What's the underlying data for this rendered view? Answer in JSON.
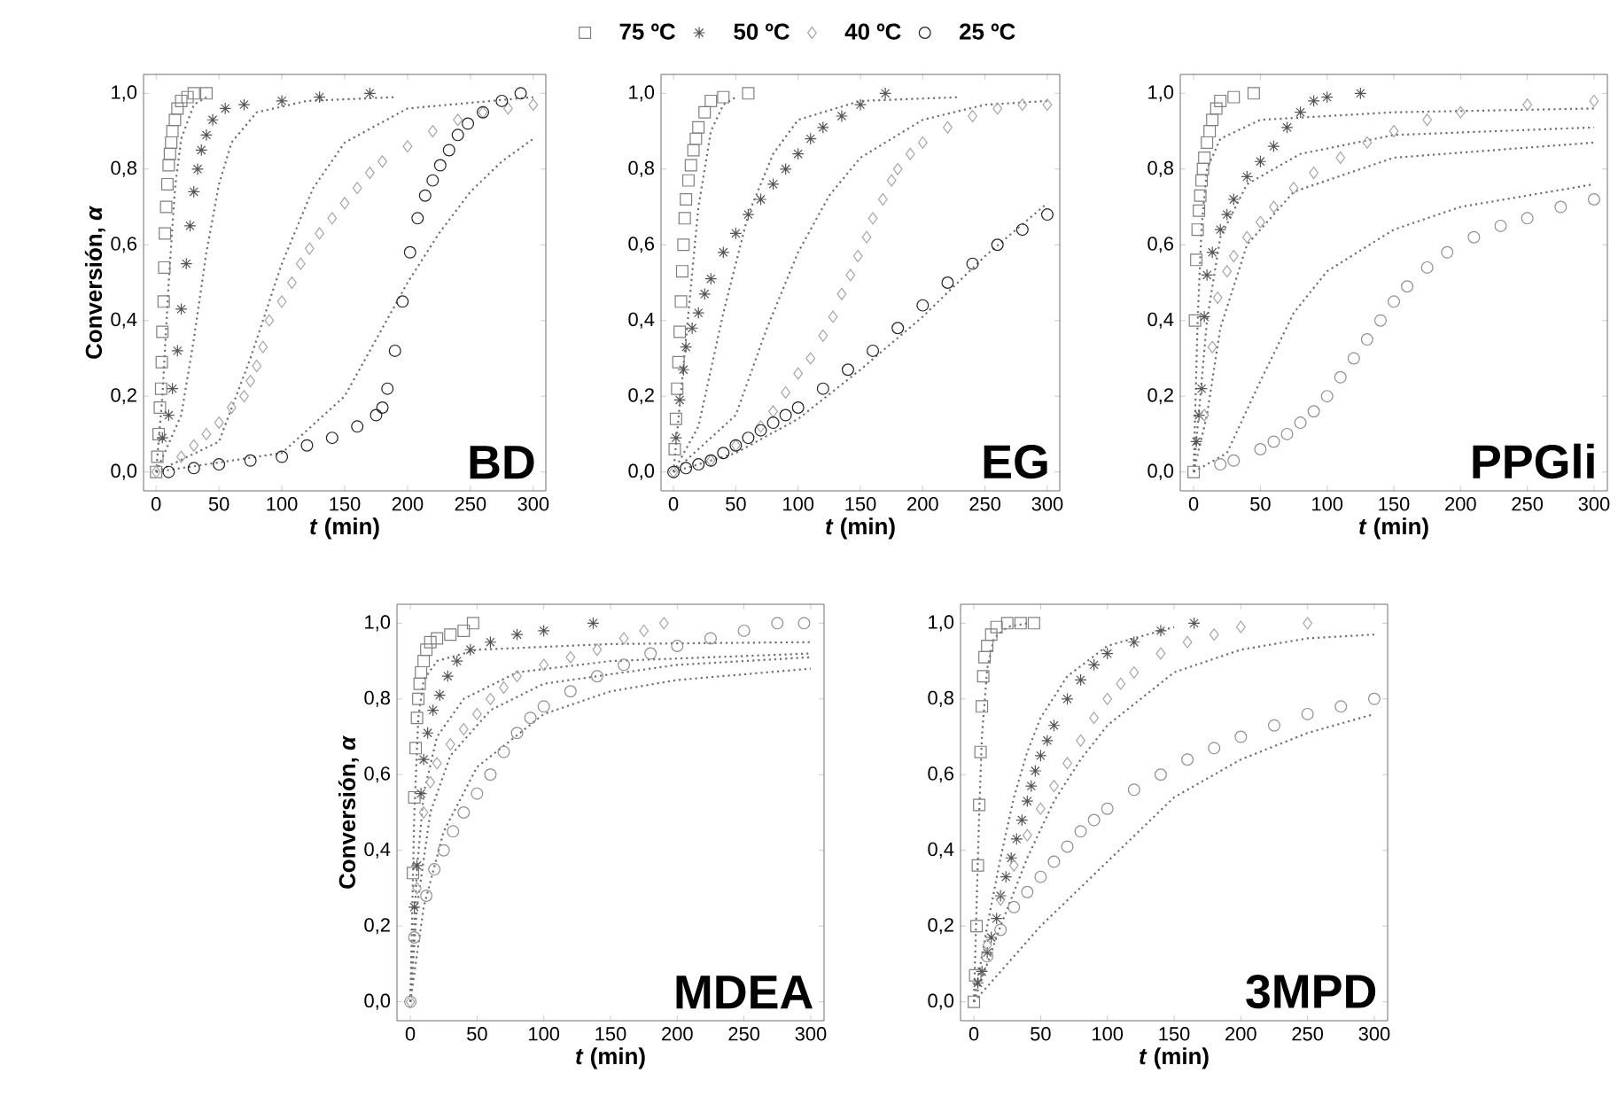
{
  "chart_data": [
    {
      "type": "scatter",
      "xlabel": "*t* (min)",
      "ylabel": "Conversión, *α*",
      "annotations": [
        "BD"
      ],
      "legend": "top",
      "xlim": [
        -10,
        310
      ],
      "ylim": [
        -0.05,
        1.05
      ],
      "xticks": [
        0,
        50,
        100,
        150,
        200,
        250,
        300
      ],
      "yticks": [
        {
          "value": 0,
          "label": "0,0"
        },
        {
          "value": 0.2,
          "label": "0,2"
        },
        {
          "value": 0.4,
          "label": "0,4"
        },
        {
          "value": 0.6,
          "label": "0,6"
        },
        {
          "value": 0.8,
          "label": "0,8"
        },
        {
          "value": 1.0,
          "label": "1,0"
        }
      ],
      "series": [
        {
          "name": "75 ºC",
          "marker": "square",
          "color": "#808080",
          "x": [
            0,
            1,
            2,
            3,
            4,
            4.5,
            5,
            6,
            6.5,
            7,
            8,
            9,
            10,
            11,
            12,
            13,
            15,
            17,
            20,
            25,
            30,
            40
          ],
          "values": [
            0,
            0.04,
            0.1,
            0.17,
            0.22,
            0.29,
            0.37,
            0.45,
            0.54,
            0.63,
            0.7,
            0.76,
            0.81,
            0.84,
            0.87,
            0.9,
            0.93,
            0.96,
            0.98,
            0.99,
            1.0,
            1.0
          ]
        },
        {
          "name": "50 ºC",
          "marker": "cross",
          "color": "#555555",
          "x": [
            5,
            10,
            13,
            17,
            20,
            24,
            27,
            30,
            33,
            36,
            40,
            45,
            55,
            70,
            100,
            130,
            170
          ],
          "values": [
            0.09,
            0.15,
            0.22,
            0.32,
            0.43,
            0.55,
            0.65,
            0.74,
            0.8,
            0.85,
            0.89,
            0.93,
            0.96,
            0.97,
            0.98,
            0.99,
            1.0
          ]
        },
        {
          "name": "40 ºC",
          "marker": "diamond",
          "color": "#a6a6a6",
          "x": [
            0,
            20,
            30,
            40,
            50,
            60,
            70,
            75,
            80,
            85,
            90,
            100,
            108,
            115,
            122,
            130,
            140,
            150,
            160,
            170,
            180,
            200,
            220,
            240,
            260,
            280,
            300
          ],
          "values": [
            0,
            0.04,
            0.07,
            0.1,
            0.13,
            0.17,
            0.2,
            0.24,
            0.28,
            0.33,
            0.4,
            0.45,
            0.5,
            0.55,
            0.59,
            0.63,
            0.67,
            0.71,
            0.75,
            0.79,
            0.82,
            0.86,
            0.9,
            0.93,
            0.95,
            0.96,
            0.97
          ]
        },
        {
          "name": "25 ºC",
          "marker": "circle",
          "color": "#222222",
          "x": [
            10,
            30,
            50,
            75,
            100,
            120,
            140,
            160,
            175,
            180,
            184,
            190,
            196,
            202,
            208,
            214,
            220,
            226,
            233,
            240,
            248,
            260,
            275,
            290
          ],
          "values": [
            0,
            0.01,
            0.02,
            0.03,
            0.04,
            0.07,
            0.09,
            0.12,
            0.15,
            0.17,
            0.22,
            0.32,
            0.45,
            0.58,
            0.67,
            0.73,
            0.77,
            0.81,
            0.85,
            0.89,
            0.92,
            0.95,
            0.98,
            1.0
          ]
        },
        {
          "type": "line",
          "marker": "none",
          "line_style": "dotted",
          "color": "#707070",
          "x": [
            0,
            5,
            10,
            15,
            20,
            30,
            40
          ],
          "values": [
            0,
            0.2,
            0.5,
            0.75,
            0.88,
            0.97,
            0.99
          ]
        },
        {
          "type": "line",
          "marker": "none",
          "line_style": "dotted",
          "color": "#707070",
          "x": [
            0,
            20,
            30,
            40,
            50,
            60,
            80,
            120,
            190
          ],
          "values": [
            0,
            0.15,
            0.35,
            0.58,
            0.76,
            0.87,
            0.95,
            0.98,
            0.99
          ]
        },
        {
          "type": "line",
          "marker": "none",
          "line_style": "dotted",
          "color": "#707070",
          "x": [
            0,
            50,
            75,
            100,
            125,
            150,
            200,
            300
          ],
          "values": [
            0,
            0.08,
            0.3,
            0.55,
            0.75,
            0.87,
            0.96,
            0.99
          ]
        },
        {
          "type": "line",
          "marker": "none",
          "line_style": "dotted",
          "color": "#707070",
          "x": [
            0,
            100,
            150,
            175,
            200,
            225,
            250,
            275,
            300
          ],
          "values": [
            0,
            0.05,
            0.2,
            0.35,
            0.5,
            0.63,
            0.74,
            0.82,
            0.88
          ]
        }
      ]
    },
    {
      "type": "scatter",
      "xlabel": "*t* (min)",
      "annotations": [
        "EG"
      ],
      "xlim": [
        -10,
        310
      ],
      "ylim": [
        -0.05,
        1.05
      ],
      "xticks": [
        0,
        50,
        100,
        150,
        200,
        250,
        300
      ],
      "yticks": [
        {
          "value": 0,
          "label": "0,0"
        },
        {
          "value": 0.2,
          "label": "0,2"
        },
        {
          "value": 0.4,
          "label": "0,4"
        },
        {
          "value": 0.6,
          "label": "0,6"
        },
        {
          "value": 0.8,
          "label": "0,8"
        },
        {
          "value": 1.0,
          "label": "1,0"
        }
      ],
      "series": [
        {
          "marker": "square",
          "color": "#808080",
          "x": [
            1,
            2,
            3,
            4,
            5,
            6,
            7,
            8,
            9,
            10,
            12,
            14,
            16,
            18,
            20,
            25,
            30,
            40,
            60
          ],
          "values": [
            0.06,
            0.14,
            0.22,
            0.29,
            0.37,
            0.45,
            0.53,
            0.6,
            0.67,
            0.72,
            0.77,
            0.81,
            0.85,
            0.88,
            0.91,
            0.95,
            0.98,
            0.99,
            1.0
          ]
        },
        {
          "marker": "cross",
          "color": "#555555",
          "x": [
            2,
            5,
            8,
            10,
            15,
            20,
            25,
            30,
            40,
            50,
            60,
            70,
            80,
            90,
            100,
            110,
            120,
            135,
            150,
            170
          ],
          "values": [
            0.09,
            0.19,
            0.27,
            0.33,
            0.38,
            0.42,
            0.47,
            0.51,
            0.58,
            0.63,
            0.68,
            0.72,
            0.76,
            0.8,
            0.84,
            0.88,
            0.91,
            0.94,
            0.97,
            1.0
          ]
        },
        {
          "marker": "diamond",
          "color": "#a6a6a6",
          "x": [
            0,
            30,
            50,
            70,
            80,
            90,
            100,
            110,
            120,
            128,
            135,
            142,
            148,
            155,
            160,
            168,
            175,
            180,
            190,
            200,
            220,
            240,
            260,
            280,
            300
          ],
          "values": [
            0,
            0.03,
            0.07,
            0.12,
            0.16,
            0.21,
            0.26,
            0.3,
            0.36,
            0.41,
            0.47,
            0.52,
            0.57,
            0.62,
            0.67,
            0.72,
            0.77,
            0.8,
            0.84,
            0.87,
            0.91,
            0.94,
            0.96,
            0.97,
            0.97
          ]
        },
        {
          "marker": "circle",
          "color": "#222222",
          "x": [
            0,
            10,
            20,
            30,
            40,
            50,
            60,
            70,
            80,
            90,
            100,
            120,
            140,
            160,
            180,
            200,
            220,
            240,
            260,
            280,
            300
          ],
          "values": [
            0,
            0.01,
            0.02,
            0.03,
            0.05,
            0.07,
            0.09,
            0.11,
            0.13,
            0.15,
            0.17,
            0.22,
            0.27,
            0.32,
            0.38,
            0.44,
            0.5,
            0.55,
            0.6,
            0.64,
            0.68
          ]
        },
        {
          "type": "line",
          "marker": "none",
          "line_style": "dotted",
          "color": "#707070",
          "x": [
            0,
            10,
            20,
            30,
            40,
            50
          ],
          "values": [
            0,
            0.35,
            0.7,
            0.9,
            0.97,
            0.99
          ]
        },
        {
          "type": "line",
          "marker": "none",
          "line_style": "dotted",
          "color": "#707070",
          "x": [
            0,
            20,
            40,
            60,
            80,
            100,
            150,
            230
          ],
          "values": [
            0,
            0.12,
            0.42,
            0.68,
            0.84,
            0.93,
            0.98,
            0.99
          ]
        },
        {
          "type": "line",
          "marker": "none",
          "line_style": "dotted",
          "color": "#707070",
          "x": [
            0,
            50,
            75,
            100,
            125,
            150,
            200,
            250,
            300
          ],
          "values": [
            0,
            0.15,
            0.38,
            0.58,
            0.73,
            0.83,
            0.93,
            0.97,
            0.98
          ]
        },
        {
          "type": "line",
          "marker": "none",
          "line_style": "dotted",
          "color": "#707070",
          "x": [
            0,
            50,
            100,
            150,
            200,
            250,
            300
          ],
          "values": [
            0,
            0.05,
            0.14,
            0.27,
            0.41,
            0.57,
            0.71
          ]
        }
      ]
    },
    {
      "type": "scatter",
      "xlabel": "*t* (min)",
      "annotations": [
        "PPGli"
      ],
      "xlim": [
        -10,
        310
      ],
      "ylim": [
        -0.05,
        1.05
      ],
      "xticks": [
        0,
        50,
        100,
        150,
        200,
        250,
        300
      ],
      "yticks": [
        {
          "value": 0,
          "label": "0,0"
        },
        {
          "value": 0.2,
          "label": "0,2"
        },
        {
          "value": 0.4,
          "label": "0,4"
        },
        {
          "value": 0.6,
          "label": "0,6"
        },
        {
          "value": 0.8,
          "label": "0,8"
        },
        {
          "value": 1.0,
          "label": "1,0"
        }
      ],
      "series": [
        {
          "marker": "square",
          "color": "#808080",
          "x": [
            0,
            1,
            2,
            3,
            4,
            5,
            6,
            7,
            8,
            10,
            12,
            14,
            17,
            20,
            30,
            45
          ],
          "values": [
            0,
            0.4,
            0.56,
            0.64,
            0.69,
            0.73,
            0.77,
            0.8,
            0.83,
            0.87,
            0.9,
            0.93,
            0.96,
            0.98,
            0.99,
            1.0
          ]
        },
        {
          "marker": "cross",
          "color": "#555555",
          "x": [
            2,
            4,
            6,
            8,
            10,
            14,
            20,
            25,
            30,
            40,
            50,
            60,
            70,
            80,
            90,
            100,
            125
          ],
          "values": [
            0.08,
            0.15,
            0.22,
            0.41,
            0.52,
            0.58,
            0.64,
            0.68,
            0.72,
            0.78,
            0.82,
            0.86,
            0.91,
            0.95,
            0.98,
            0.99,
            1.0
          ]
        },
        {
          "marker": "diamond",
          "color": "#a6a6a6",
          "x": [
            8,
            14,
            18,
            25,
            30,
            40,
            50,
            60,
            75,
            90,
            110,
            130,
            150,
            175,
            200,
            250,
            300
          ],
          "values": [
            0.15,
            0.33,
            0.46,
            0.53,
            0.57,
            0.62,
            0.66,
            0.7,
            0.75,
            0.79,
            0.83,
            0.87,
            0.9,
            0.93,
            0.95,
            0.97,
            0.98
          ]
        },
        {
          "marker": "circle",
          "color": "#909090",
          "x": [
            20,
            30,
            50,
            60,
            70,
            80,
            90,
            100,
            110,
            120,
            130,
            140,
            150,
            160,
            175,
            190,
            210,
            230,
            250,
            275,
            300
          ],
          "values": [
            0.02,
            0.03,
            0.06,
            0.08,
            0.1,
            0.13,
            0.16,
            0.2,
            0.25,
            0.3,
            0.35,
            0.4,
            0.45,
            0.49,
            0.54,
            0.58,
            0.62,
            0.65,
            0.67,
            0.7,
            0.72
          ]
        },
        {
          "type": "line",
          "marker": "none",
          "line_style": "dotted",
          "color": "#707070",
          "x": [
            0,
            3,
            6,
            10,
            20,
            50,
            150,
            300
          ],
          "values": [
            0,
            0.4,
            0.65,
            0.8,
            0.88,
            0.93,
            0.95,
            0.96
          ]
        },
        {
          "type": "line",
          "marker": "none",
          "line_style": "dotted",
          "color": "#707070",
          "x": [
            0,
            5,
            10,
            20,
            40,
            80,
            150,
            300
          ],
          "values": [
            0,
            0.2,
            0.4,
            0.62,
            0.76,
            0.84,
            0.89,
            0.91
          ]
        },
        {
          "type": "line",
          "marker": "none",
          "line_style": "dotted",
          "color": "#707070",
          "x": [
            0,
            10,
            20,
            40,
            75,
            150,
            300
          ],
          "values": [
            0,
            0.15,
            0.38,
            0.6,
            0.74,
            0.83,
            0.87
          ]
        },
        {
          "type": "line",
          "marker": "none",
          "line_style": "dotted",
          "color": "#707070",
          "x": [
            0,
            25,
            50,
            75,
            100,
            150,
            200,
            300
          ],
          "values": [
            0,
            0.05,
            0.24,
            0.42,
            0.53,
            0.64,
            0.7,
            0.76
          ]
        }
      ]
    },
    {
      "type": "scatter",
      "xlabel": "*t* (min)",
      "ylabel": "Conversión, *α*",
      "annotations": [
        "MDEA"
      ],
      "xlim": [
        -10,
        310
      ],
      "ylim": [
        -0.05,
        1.05
      ],
      "xticks": [
        0,
        50,
        100,
        150,
        200,
        250,
        300
      ],
      "yticks": [
        {
          "value": 0,
          "label": "0,0"
        },
        {
          "value": 0.2,
          "label": "0,2"
        },
        {
          "value": 0.4,
          "label": "0,4"
        },
        {
          "value": 0.6,
          "label": "0,6"
        },
        {
          "value": 0.8,
          "label": "0,8"
        },
        {
          "value": 1.0,
          "label": "1,0"
        }
      ],
      "series": [
        {
          "marker": "square",
          "color": "#808080",
          "x": [
            2,
            3,
            4,
            5,
            6,
            7,
            8,
            10,
            12,
            15,
            20,
            30,
            40,
            47
          ],
          "values": [
            0.34,
            0.54,
            0.67,
            0.75,
            0.8,
            0.84,
            0.87,
            0.9,
            0.93,
            0.95,
            0.96,
            0.97,
            0.98,
            1.0
          ]
        },
        {
          "marker": "cross",
          "color": "#555555",
          "x": [
            3,
            5,
            8,
            10,
            13,
            17,
            22,
            28,
            35,
            45,
            60,
            80,
            100,
            137
          ],
          "values": [
            0.25,
            0.36,
            0.55,
            0.64,
            0.71,
            0.77,
            0.81,
            0.86,
            0.9,
            0.93,
            0.95,
            0.97,
            0.98,
            1.0
          ]
        },
        {
          "marker": "diamond",
          "color": "#a6a6a6",
          "x": [
            0,
            5,
            10,
            15,
            20,
            30,
            40,
            50,
            60,
            70,
            80,
            100,
            120,
            140,
            160,
            175,
            190
          ],
          "values": [
            0,
            0.3,
            0.5,
            0.58,
            0.63,
            0.68,
            0.72,
            0.76,
            0.8,
            0.83,
            0.86,
            0.89,
            0.91,
            0.93,
            0.96,
            0.98,
            1.0
          ]
        },
        {
          "marker": "circle",
          "color": "#909090",
          "x": [
            0,
            3,
            12,
            18,
            25,
            32,
            40,
            50,
            60,
            70,
            80,
            90,
            100,
            120,
            140,
            160,
            180,
            200,
            225,
            250,
            275,
            295
          ],
          "values": [
            0,
            0.17,
            0.28,
            0.35,
            0.4,
            0.45,
            0.5,
            0.55,
            0.6,
            0.66,
            0.71,
            0.75,
            0.78,
            0.82,
            0.86,
            0.89,
            0.92,
            0.94,
            0.96,
            0.98,
            1.0,
            1.0
          ]
        },
        {
          "type": "line",
          "marker": "none",
          "line_style": "dotted",
          "color": "#707070",
          "x": [
            0,
            3,
            6,
            10,
            20,
            50,
            150,
            300
          ],
          "values": [
            0,
            0.5,
            0.75,
            0.85,
            0.9,
            0.93,
            0.945,
            0.95
          ]
        },
        {
          "type": "line",
          "marker": "none",
          "line_style": "dotted",
          "color": "#707070",
          "x": [
            0,
            5,
            10,
            20,
            40,
            80,
            150,
            300
          ],
          "values": [
            0,
            0.35,
            0.55,
            0.7,
            0.8,
            0.87,
            0.9,
            0.92
          ]
        },
        {
          "type": "line",
          "marker": "none",
          "line_style": "dotted",
          "color": "#707070",
          "x": [
            0,
            5,
            15,
            30,
            60,
            100,
            200,
            300
          ],
          "values": [
            0,
            0.25,
            0.5,
            0.65,
            0.77,
            0.84,
            0.89,
            0.91
          ]
        },
        {
          "type": "line",
          "marker": "none",
          "line_style": "dotted",
          "color": "#707070",
          "x": [
            0,
            10,
            25,
            50,
            100,
            150,
            200,
            300
          ],
          "values": [
            0,
            0.25,
            0.45,
            0.62,
            0.76,
            0.82,
            0.85,
            0.88
          ]
        }
      ]
    },
    {
      "type": "scatter",
      "xlabel": "*t* (min)",
      "annotations": [
        "3MPD"
      ],
      "xlim": [
        -10,
        310
      ],
      "ylim": [
        -0.05,
        1.05
      ],
      "xticks": [
        0,
        50,
        100,
        150,
        200,
        250,
        300
      ],
      "yticks": [
        {
          "value": 0,
          "label": "0,0"
        },
        {
          "value": 0.2,
          "label": "0,2"
        },
        {
          "value": 0.4,
          "label": "0,4"
        },
        {
          "value": 0.6,
          "label": "0,6"
        },
        {
          "value": 0.8,
          "label": "0,8"
        },
        {
          "value": 1.0,
          "label": "1,0"
        }
      ],
      "series": [
        {
          "marker": "square",
          "color": "#808080",
          "x": [
            0,
            1,
            2,
            3,
            4,
            5,
            6,
            7,
            8,
            10,
            13,
            17,
            25,
            35,
            45
          ],
          "values": [
            0,
            0.07,
            0.2,
            0.36,
            0.52,
            0.66,
            0.78,
            0.86,
            0.91,
            0.94,
            0.97,
            0.99,
            1.0,
            1.0,
            1.0
          ]
        },
        {
          "marker": "cross",
          "color": "#555555",
          "x": [
            3,
            6,
            10,
            13,
            17,
            20,
            24,
            28,
            32,
            36,
            40,
            43,
            46,
            50,
            55,
            60,
            70,
            80,
            90,
            100,
            120,
            140,
            165
          ],
          "values": [
            0.05,
            0.08,
            0.13,
            0.17,
            0.22,
            0.28,
            0.33,
            0.38,
            0.43,
            0.48,
            0.53,
            0.57,
            0.61,
            0.65,
            0.69,
            0.73,
            0.8,
            0.85,
            0.89,
            0.92,
            0.95,
            0.98,
            1.0
          ]
        },
        {
          "marker": "diamond",
          "color": "#a6a6a6",
          "x": [
            10,
            20,
            30,
            40,
            50,
            60,
            70,
            80,
            90,
            100,
            110,
            120,
            140,
            160,
            180,
            200,
            250
          ],
          "values": [
            0.15,
            0.27,
            0.36,
            0.44,
            0.51,
            0.57,
            0.63,
            0.69,
            0.75,
            0.8,
            0.84,
            0.87,
            0.92,
            0.95,
            0.97,
            0.99,
            1.0
          ]
        },
        {
          "marker": "circle",
          "color": "#909090",
          "x": [
            10,
            20,
            30,
            40,
            50,
            60,
            70,
            80,
            90,
            100,
            120,
            140,
            160,
            180,
            200,
            225,
            250,
            275,
            300
          ],
          "values": [
            0.12,
            0.19,
            0.25,
            0.29,
            0.33,
            0.37,
            0.41,
            0.45,
            0.48,
            0.51,
            0.56,
            0.6,
            0.64,
            0.67,
            0.7,
            0.73,
            0.76,
            0.78,
            0.8
          ]
        },
        {
          "type": "line",
          "marker": "none",
          "line_style": "dotted",
          "color": "#707070",
          "x": [
            0,
            2,
            4,
            6,
            10,
            15,
            25,
            40
          ],
          "values": [
            0,
            0.25,
            0.5,
            0.7,
            0.88,
            0.96,
            0.99,
            1.0
          ]
        },
        {
          "type": "line",
          "marker": "none",
          "line_style": "dotted",
          "color": "#707070",
          "x": [
            0,
            10,
            20,
            30,
            40,
            50,
            70,
            100,
            150
          ],
          "values": [
            0,
            0.2,
            0.38,
            0.54,
            0.66,
            0.75,
            0.86,
            0.94,
            0.99
          ]
        },
        {
          "type": "line",
          "marker": "none",
          "line_style": "dotted",
          "color": "#707070",
          "x": [
            0,
            20,
            40,
            60,
            80,
            100,
            150,
            200,
            250,
            300
          ],
          "values": [
            0,
            0.2,
            0.38,
            0.53,
            0.64,
            0.73,
            0.87,
            0.93,
            0.96,
            0.97
          ]
        },
        {
          "type": "line",
          "marker": "none",
          "line_style": "dotted",
          "color": "#707070",
          "x": [
            0,
            50,
            100,
            150,
            200,
            250,
            300
          ],
          "values": [
            0,
            0.2,
            0.37,
            0.54,
            0.64,
            0.71,
            0.76
          ]
        }
      ]
    }
  ]
}
